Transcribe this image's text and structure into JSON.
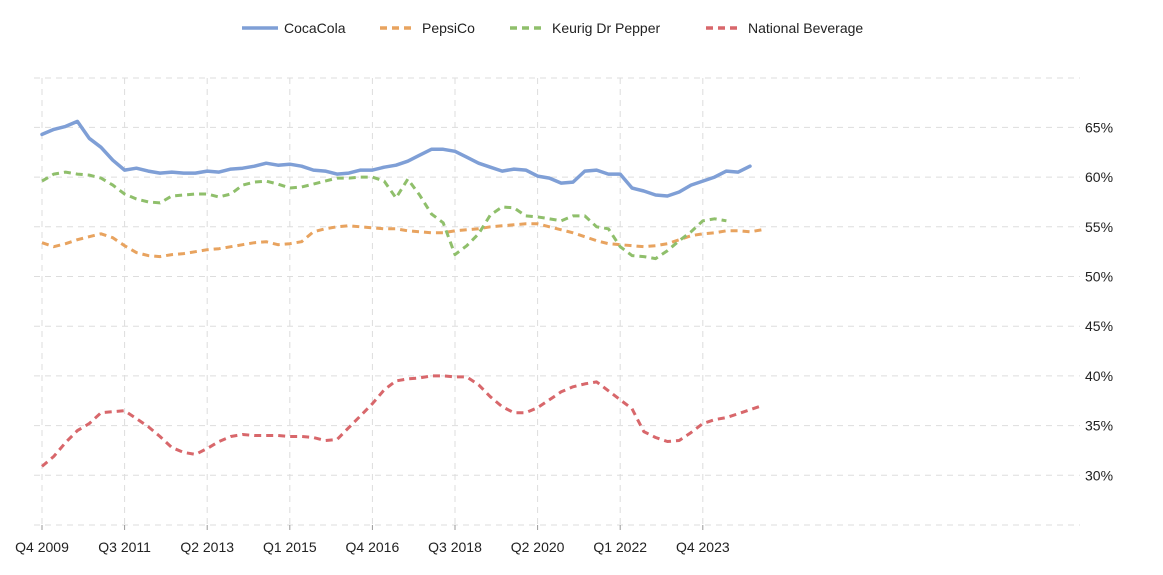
{
  "chart_data": {
    "type": "line",
    "title": "",
    "xlabel": "",
    "ylabel": "",
    "ylim": [
      25,
      70
    ],
    "x_tick_labels": [
      "Q4 2009",
      "Q3 2011",
      "Q2 2013",
      "Q1 2015",
      "Q4 2016",
      "Q3 2018",
      "Q2 2020",
      "Q1 2022",
      "Q4 2023"
    ],
    "y_ticks": [
      30,
      35,
      40,
      45,
      50,
      55,
      60,
      65
    ],
    "y_tick_suffix": "%",
    "grid": true,
    "legend_position": "top-center",
    "x": [
      "Q4 2009",
      "Q1 2010",
      "Q2 2010",
      "Q3 2010",
      "Q4 2010",
      "Q1 2011",
      "Q2 2011",
      "Q3 2011",
      "Q4 2011",
      "Q1 2012",
      "Q2 2012",
      "Q3 2012",
      "Q4 2012",
      "Q1 2013",
      "Q2 2013",
      "Q3 2013",
      "Q4 2013",
      "Q1 2014",
      "Q2 2014",
      "Q3 2014",
      "Q4 2014",
      "Q1 2015",
      "Q2 2015",
      "Q3 2015",
      "Q4 2015",
      "Q1 2016",
      "Q2 2016",
      "Q3 2016",
      "Q4 2016",
      "Q1 2017",
      "Q2 2017",
      "Q3 2017",
      "Q4 2017",
      "Q1 2018",
      "Q2 2018",
      "Q3 2018",
      "Q4 2018",
      "Q1 2019",
      "Q2 2019",
      "Q3 2019",
      "Q4 2019",
      "Q1 2020",
      "Q2 2020",
      "Q3 2020",
      "Q4 2020",
      "Q1 2021",
      "Q2 2021",
      "Q3 2021",
      "Q4 2021",
      "Q1 2022",
      "Q2 2022",
      "Q3 2022",
      "Q4 2022",
      "Q1 2023",
      "Q2 2023",
      "Q3 2023",
      "Q4 2023",
      "Q1 2024",
      "Q2 2024",
      "Q3 2024",
      "Q4 2024",
      "Q1 2025"
    ],
    "series": [
      {
        "name": "CocaCola",
        "color": "#7f9fd6",
        "dashed": false,
        "values": [
          64.3,
          64.8,
          65.1,
          65.6,
          63.9,
          63.0,
          61.7,
          60.7,
          60.9,
          60.6,
          60.4,
          60.5,
          60.4,
          60.4,
          60.6,
          60.5,
          60.8,
          60.9,
          61.1,
          61.4,
          61.2,
          61.3,
          61.1,
          60.7,
          60.6,
          60.3,
          60.4,
          60.7,
          60.7,
          61.0,
          61.2,
          61.6,
          62.2,
          62.8,
          62.8,
          62.6,
          62.0,
          61.4,
          61.0,
          60.6,
          60.8,
          60.7,
          60.1,
          59.9,
          59.4,
          59.5,
          60.6,
          60.7,
          60.3,
          60.3,
          58.9,
          58.6,
          58.2,
          58.1,
          58.5,
          59.2,
          59.6,
          60.0,
          60.6,
          60.5,
          61.1,
          null
        ]
      },
      {
        "name": "PepsiCo",
        "color": "#e8a35f",
        "dashed": true,
        "values": [
          53.4,
          53.0,
          53.3,
          53.7,
          54.0,
          54.3,
          53.9,
          53.1,
          52.4,
          52.1,
          52.0,
          52.2,
          52.3,
          52.5,
          52.7,
          52.8,
          53.0,
          53.2,
          53.4,
          53.5,
          53.2,
          53.3,
          53.5,
          54.5,
          54.8,
          55.0,
          55.1,
          55.0,
          54.9,
          54.8,
          54.8,
          54.6,
          54.5,
          54.4,
          54.4,
          54.6,
          54.7,
          54.8,
          55.0,
          55.1,
          55.2,
          55.3,
          55.3,
          55.0,
          54.7,
          54.4,
          54.0,
          53.6,
          53.3,
          53.2,
          53.1,
          53.0,
          53.1,
          53.3,
          53.7,
          54.1,
          54.3,
          54.4,
          54.6,
          54.6,
          54.5,
          54.7
        ]
      },
      {
        "name": "Keurig Dr Pepper",
        "color": "#8fbf6b",
        "dashed": true,
        "values": [
          59.6,
          60.3,
          60.5,
          60.3,
          60.2,
          59.9,
          59.2,
          58.3,
          57.8,
          57.5,
          57.4,
          58.1,
          58.2,
          58.3,
          58.3,
          58.0,
          58.3,
          59.2,
          59.5,
          59.6,
          59.3,
          58.9,
          59.0,
          59.3,
          59.6,
          59.9,
          59.9,
          60.0,
          60.0,
          59.6,
          57.9,
          59.8,
          58.2,
          56.3,
          55.4,
          52.2,
          53.1,
          54.3,
          56.2,
          57.0,
          56.9,
          56.1,
          56.0,
          55.8,
          55.6,
          56.1,
          56.1,
          55.0,
          54.8,
          53.0,
          52.1,
          52.0,
          51.8,
          52.6,
          53.6,
          54.5,
          55.6,
          55.8,
          55.6,
          null,
          null,
          null
        ]
      },
      {
        "name": "National Beverage",
        "color": "#d8676b",
        "dashed": true,
        "values": [
          30.9,
          31.9,
          33.3,
          34.5,
          35.2,
          36.3,
          36.4,
          36.5,
          35.7,
          34.9,
          33.9,
          32.8,
          32.3,
          32.1,
          32.7,
          33.4,
          33.9,
          34.1,
          34.0,
          34.0,
          34.0,
          33.9,
          33.9,
          33.8,
          33.5,
          33.6,
          34.8,
          36.0,
          37.2,
          38.6,
          39.5,
          39.7,
          39.8,
          40.0,
          40.0,
          39.9,
          39.9,
          39.1,
          37.9,
          36.9,
          36.3,
          36.3,
          36.8,
          37.6,
          38.4,
          38.9,
          39.2,
          39.4,
          38.5,
          37.6,
          36.7,
          34.4,
          33.8,
          33.4,
          33.5,
          34.3,
          35.2,
          35.6,
          35.8,
          36.2,
          36.6,
          37.0
        ]
      }
    ]
  }
}
